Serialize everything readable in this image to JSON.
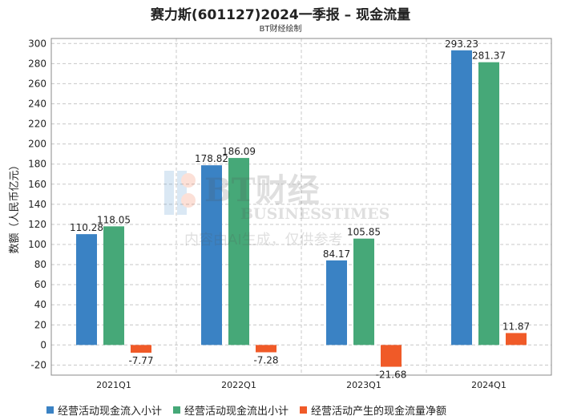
{
  "title": "赛力斯(601127)2024一季报 – 现金流量",
  "subtitle": "BT财经绘制",
  "watermark": {
    "brand": "BT财经",
    "brand_en": "BUSINESSTIMES",
    "note": "内容由AI生成，仅供参考"
  },
  "colors": {
    "inflow": "#3a82c4",
    "outflow": "#46a878",
    "net": "#f05a28"
  },
  "chart_data": {
    "type": "bar",
    "ylabel": "数额（人民币亿元）",
    "ylim": [
      -30,
      305
    ],
    "yticks": [
      -20,
      0,
      20,
      40,
      60,
      80,
      100,
      120,
      140,
      160,
      180,
      200,
      220,
      240,
      260,
      280,
      300
    ],
    "grid": true,
    "legend": "bottom",
    "categories": [
      "2021Q1",
      "2022Q1",
      "2023Q1",
      "2024Q1"
    ],
    "series": [
      {
        "name": "经营活动现金流入小计",
        "color": "#3a82c4",
        "values": [
          110.28,
          178.82,
          84.17,
          293.23
        ],
        "labels": [
          "110.28",
          "178.82",
          "84.17",
          "293.23"
        ]
      },
      {
        "name": "经营活动现金流出小计",
        "color": "#46a878",
        "values": [
          118.05,
          186.09,
          105.85,
          281.37
        ],
        "labels": [
          "118.05",
          "186.09",
          "105.85",
          "281.37"
        ]
      },
      {
        "name": "经营活动产生的现金流量净额",
        "color": "#f05a28",
        "values": [
          -7.77,
          -7.28,
          -21.68,
          11.87
        ],
        "labels": [
          "-7.77",
          "-7.28",
          "-21.68",
          "11.87"
        ]
      }
    ]
  }
}
